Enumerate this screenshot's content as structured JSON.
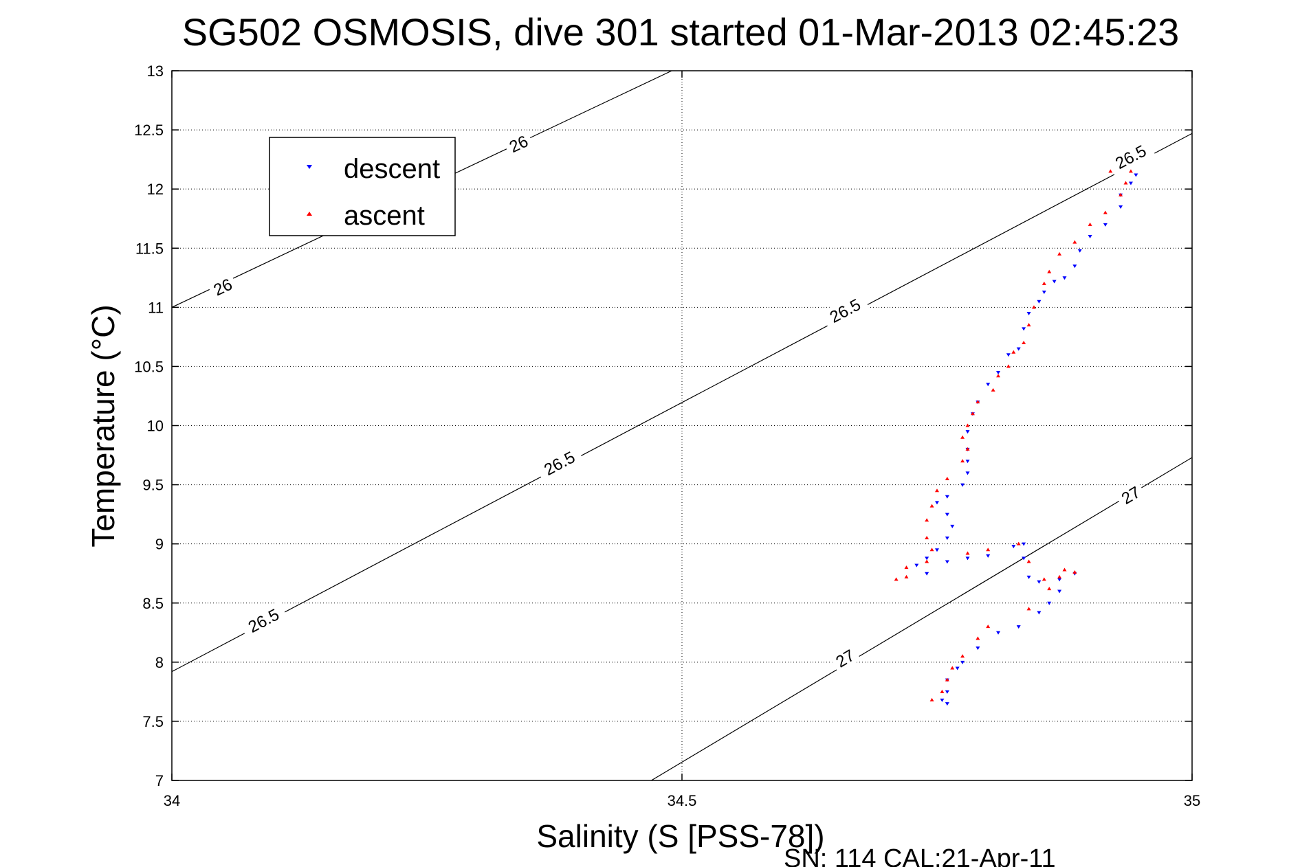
{
  "chart_data": {
    "type": "scatter",
    "title": "SG502 OSMOSIS, dive 301 started 01-Mar-2013 02:45:23",
    "xlabel": "Salinity (S [PSS-78])",
    "ylabel": "Temperature (°C)",
    "footer": "SN: 114  CAL:21-Apr-11",
    "xlim": [
      34,
      35
    ],
    "ylim": [
      7,
      13
    ],
    "xticks": [
      "34",
      "34.5",
      "35"
    ],
    "yticks": [
      "7",
      "7.5",
      "8",
      "8.5",
      "9",
      "9.5",
      "10",
      "10.5",
      "11",
      "11.5",
      "12",
      "12.5",
      "13"
    ],
    "grid": true,
    "legend": {
      "placement": "top-left",
      "entries": [
        {
          "label": "descent",
          "color": "#0000ff",
          "marker": "triangle-down"
        },
        {
          "label": "ascent",
          "color": "#ff0000",
          "marker": "triangle-up"
        }
      ]
    },
    "contours": [
      {
        "label": "26",
        "points": [
          [
            34.0,
            11.0
          ],
          [
            34.49,
            13.0
          ]
        ],
        "labels_at": [
          [
            34.05,
            11.17
          ],
          [
            34.34,
            12.38
          ]
        ]
      },
      {
        "label": "26.5",
        "points": [
          [
            34.0,
            7.92
          ],
          [
            35.0,
            12.47
          ]
        ],
        "labels_at": [
          [
            34.09,
            8.35
          ],
          [
            34.38,
            9.68
          ],
          [
            34.66,
            10.97
          ],
          [
            34.94,
            12.27
          ]
        ]
      },
      {
        "label": "27",
        "points": [
          [
            34.47,
            7.0
          ],
          [
            35.0,
            9.73
          ]
        ],
        "labels_at": [
          [
            34.66,
            8.03
          ],
          [
            34.94,
            9.41
          ]
        ]
      }
    ],
    "series": [
      {
        "name": "descent",
        "color": "#0000ff",
        "x": [
          34.945,
          34.94,
          34.93,
          34.93,
          34.915,
          34.9,
          34.89,
          34.885,
          34.875,
          34.865,
          34.855,
          34.85,
          34.84,
          34.835,
          34.83,
          34.82,
          34.81,
          34.8,
          34.79,
          34.785,
          34.78,
          34.78,
          34.78,
          34.78,
          34.775,
          34.76,
          34.75,
          34.76,
          34.765,
          34.76,
          34.75,
          34.74,
          34.73,
          34.74,
          34.76,
          34.78,
          34.8,
          34.825,
          34.835,
          34.835,
          34.84,
          34.85,
          34.87,
          34.885,
          34.87,
          34.86,
          34.85,
          34.83,
          34.81,
          34.79,
          34.775,
          34.77,
          34.76,
          34.76,
          34.755,
          34.76
        ],
        "y": [
          12.12,
          12.05,
          11.95,
          11.85,
          11.7,
          11.6,
          11.48,
          11.35,
          11.25,
          11.22,
          11.13,
          11.05,
          10.95,
          10.82,
          10.65,
          10.6,
          10.45,
          10.35,
          10.2,
          10.1,
          9.95,
          9.8,
          9.7,
          9.6,
          9.5,
          9.4,
          9.35,
          9.25,
          9.15,
          9.05,
          8.95,
          8.88,
          8.82,
          8.75,
          8.85,
          8.88,
          8.9,
          8.98,
          9.0,
          8.88,
          8.72,
          8.68,
          8.7,
          8.75,
          8.6,
          8.5,
          8.42,
          8.3,
          8.25,
          8.12,
          8.0,
          7.95,
          7.85,
          7.75,
          7.68,
          7.65
        ]
      },
      {
        "name": "ascent",
        "color": "#ff0000",
        "x": [
          34.92,
          34.93,
          34.94,
          34.935,
          34.93,
          34.915,
          34.9,
          34.885,
          34.87,
          34.86,
          34.855,
          34.845,
          34.84,
          34.835,
          34.825,
          34.82,
          34.81,
          34.805,
          34.79,
          34.785,
          34.78,
          34.775,
          34.78,
          34.775,
          34.76,
          34.75,
          34.745,
          34.74,
          34.74,
          34.745,
          34.72,
          34.71,
          34.72,
          34.74,
          34.78,
          34.8,
          34.83,
          34.84,
          34.855,
          34.87,
          34.885,
          34.875,
          34.86,
          34.84,
          34.8,
          34.79,
          34.775,
          34.765,
          34.76,
          34.755,
          34.745
        ],
        "y": [
          12.15,
          12.2,
          12.15,
          12.05,
          11.95,
          11.8,
          11.7,
          11.55,
          11.45,
          11.3,
          11.2,
          11.0,
          10.85,
          10.7,
          10.62,
          10.5,
          10.42,
          10.3,
          10.2,
          10.1,
          10.0,
          9.9,
          9.8,
          9.7,
          9.55,
          9.45,
          9.32,
          9.2,
          9.05,
          8.95,
          8.8,
          8.7,
          8.72,
          8.85,
          8.92,
          8.95,
          9.0,
          8.85,
          8.7,
          8.72,
          8.76,
          8.78,
          8.62,
          8.45,
          8.3,
          8.2,
          8.05,
          7.95,
          7.85,
          7.75,
          7.68
        ]
      }
    ]
  }
}
